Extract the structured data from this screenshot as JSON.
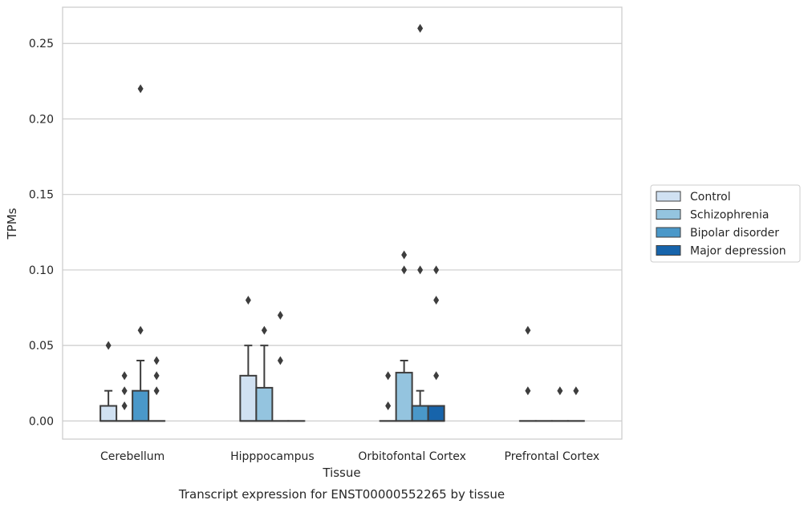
{
  "chart_data": {
    "type": "box",
    "title": "",
    "caption": "Transcript expression for ENST00000552265 by tissue",
    "xlabel": "Tissue",
    "ylabel": "TPMs",
    "ylim": [
      -0.012,
      0.274
    ],
    "yticks": [
      0.0,
      0.05,
      0.1,
      0.15,
      0.2,
      0.25
    ],
    "ytick_labels": [
      "0.00",
      "0.05",
      "0.10",
      "0.15",
      "0.20",
      "0.25"
    ],
    "grid": true,
    "legend_position": "right",
    "categories": [
      "Cerebellum",
      "Hipppocampus",
      "Orbitofontal Cortex",
      "Prefrontal Cortex"
    ],
    "series": [
      {
        "name": "Control",
        "color": "#d0e1f2",
        "boxes": [
          {
            "q1": 0.0,
            "median": 0.0,
            "q3": 0.01,
            "whisker_low": 0.0,
            "whisker_high": 0.02,
            "outliers": [
              0.05
            ]
          },
          {
            "q1": 0.0,
            "median": 0.0,
            "q3": 0.03,
            "whisker_low": 0.0,
            "whisker_high": 0.05,
            "outliers": [
              0.08
            ]
          },
          {
            "q1": 0.0,
            "median": 0.0,
            "q3": 0.0,
            "whisker_low": 0.0,
            "whisker_high": 0.0,
            "outliers": [
              0.01,
              0.03
            ]
          },
          {
            "q1": 0.0,
            "median": 0.0,
            "q3": 0.0,
            "whisker_low": 0.0,
            "whisker_high": 0.0,
            "outliers": [
              0.02,
              0.06
            ]
          }
        ]
      },
      {
        "name": "Schizophrenia",
        "color": "#94c4df",
        "boxes": [
          {
            "q1": 0.0,
            "median": 0.0,
            "q3": 0.0,
            "whisker_low": 0.0,
            "whisker_high": 0.0,
            "outliers": [
              0.01,
              0.02,
              0.03
            ]
          },
          {
            "q1": 0.0,
            "median": 0.0,
            "q3": 0.022,
            "whisker_low": 0.0,
            "whisker_high": 0.05,
            "outliers": [
              0.06
            ]
          },
          {
            "q1": 0.0,
            "median": 0.0,
            "q3": 0.032,
            "whisker_low": 0.0,
            "whisker_high": 0.04,
            "outliers": [
              0.1,
              0.11
            ]
          },
          {
            "q1": 0.0,
            "median": 0.0,
            "q3": 0.0,
            "whisker_low": 0.0,
            "whisker_high": 0.0,
            "outliers": []
          }
        ]
      },
      {
        "name": "Bipolar disorder",
        "color": "#4a98c9",
        "boxes": [
          {
            "q1": 0.0,
            "median": 0.0,
            "q3": 0.02,
            "whisker_low": 0.0,
            "whisker_high": 0.04,
            "outliers": [
              0.06,
              0.22
            ]
          },
          {
            "q1": 0.0,
            "median": 0.0,
            "q3": 0.0,
            "whisker_low": 0.0,
            "whisker_high": 0.0,
            "outliers": [
              0.04,
              0.07
            ]
          },
          {
            "q1": 0.0,
            "median": 0.0,
            "q3": 0.01,
            "whisker_low": 0.0,
            "whisker_high": 0.02,
            "outliers": [
              0.1,
              0.26
            ]
          },
          {
            "q1": 0.0,
            "median": 0.0,
            "q3": 0.0,
            "whisker_low": 0.0,
            "whisker_high": 0.0,
            "outliers": [
              0.02
            ]
          }
        ]
      },
      {
        "name": "Major depression",
        "color": "#1764ab",
        "boxes": [
          {
            "q1": 0.0,
            "median": 0.0,
            "q3": 0.0,
            "whisker_low": 0.0,
            "whisker_high": 0.0,
            "outliers": [
              0.02,
              0.03,
              0.04
            ]
          },
          {
            "q1": 0.0,
            "median": 0.0,
            "q3": 0.0,
            "whisker_low": 0.0,
            "whisker_high": 0.0,
            "outliers": []
          },
          {
            "q1": 0.0,
            "median": 0.0,
            "q3": 0.01,
            "whisker_low": 0.0,
            "whisker_high": 0.01,
            "outliers": [
              0.03,
              0.08,
              0.1
            ]
          },
          {
            "q1": 0.0,
            "median": 0.0,
            "q3": 0.0,
            "whisker_low": 0.0,
            "whisker_high": 0.0,
            "outliers": [
              0.02
            ]
          }
        ]
      }
    ]
  }
}
